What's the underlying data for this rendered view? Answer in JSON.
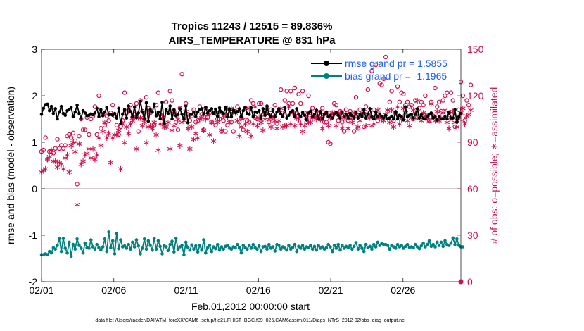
{
  "chart_data": {
    "type": "line",
    "title": "Tropics 11243 / 12515 = 89.836%",
    "subtitle": "AIRS_TEMPERATURE @ 831 hPa",
    "xlabel": "Feb.01,2012 00:00:00 start",
    "ylabel_left": "rmse and bias (model - observation)",
    "ylabel_right": "# of obs: o=possible; ∗=assimilated",
    "footer": "data file: /Users/raeder/DAI/ATM_forcXX/CAM6_setup/f.e21.FHIST_BGC.f09_025.CAM6assim.011/Diags_NTrS_2012-02/obs_diag_output.nc",
    "x_ticks": [
      "02/01",
      "02/06",
      "02/11",
      "02/16",
      "02/21",
      "02/26"
    ],
    "x_tick_days": [
      0,
      5,
      10,
      15,
      20,
      25
    ],
    "xlim": [
      0,
      29
    ],
    "ylim_left": [
      -2,
      3
    ],
    "y_ticks_left": [
      "-2",
      "-1",
      "0",
      "1",
      "2",
      "3"
    ],
    "ylim_right": [
      0,
      150
    ],
    "y_ticks_right": [
      "0",
      "30",
      "60",
      "90",
      "120",
      "150"
    ],
    "colors": {
      "rmse": "#000000",
      "bias": "#00807f",
      "obs": "#d0104a",
      "legend_text": "#1a5cff",
      "zero_line": "#c8b8c0"
    },
    "series": [
      {
        "name": "rmse grand pr = 1.5855",
        "axis": "left",
        "values": [
          1.6,
          1.73,
          1.81,
          1.82,
          1.68,
          1.77,
          1.62,
          1.72,
          1.5,
          1.65,
          1.77,
          1.62,
          1.58,
          1.68,
          1.71,
          1.75,
          1.55,
          1.65,
          1.8,
          1.62,
          1.52,
          1.68,
          1.63,
          1.57,
          1.58,
          1.61,
          1.59,
          1.63,
          1.73,
          1.55,
          1.7,
          1.57,
          1.65,
          1.75,
          1.59,
          1.6,
          1.58,
          1.62,
          1.52,
          1.73,
          1.4,
          1.6,
          1.7,
          1.52,
          1.78,
          1.66,
          1.55,
          1.76,
          1.53,
          1.63,
          1.88,
          1.65,
          1.5,
          1.85,
          1.45,
          1.7,
          1.65,
          1.82,
          1.57,
          1.65,
          1.5,
          1.86,
          1.4,
          1.7,
          1.62,
          1.78,
          1.5,
          1.7,
          1.57,
          1.6,
          1.72,
          1.6,
          1.5,
          1.78,
          1.42,
          1.6,
          1.6,
          1.65,
          1.55,
          1.65,
          1.7,
          1.72,
          1.6,
          1.75,
          1.63,
          1.68,
          1.72,
          1.62,
          1.71,
          1.56,
          1.74,
          1.66,
          1.62,
          1.75,
          1.55,
          1.7,
          1.55,
          1.69,
          1.64,
          1.66,
          1.72,
          1.55,
          1.68,
          1.75,
          1.62,
          1.6,
          1.74,
          1.55,
          1.65,
          1.64,
          1.68,
          1.5,
          1.72,
          1.58,
          1.78,
          1.6,
          1.55,
          1.7,
          1.55,
          1.65,
          1.72,
          1.61,
          1.55,
          1.75,
          1.52,
          1.58,
          1.65,
          1.68,
          1.55,
          1.72,
          1.6,
          1.55,
          1.64,
          1.58,
          1.48,
          1.63,
          1.67,
          1.55,
          1.6,
          1.69,
          1.5,
          1.66,
          1.5,
          1.6,
          1.65,
          1.55,
          1.58,
          1.52,
          1.6,
          1.64,
          1.58,
          1.52,
          1.65,
          1.55,
          1.6,
          1.52,
          1.62,
          1.57,
          1.52,
          1.65,
          1.52,
          1.6,
          1.55,
          1.7,
          1.52,
          1.6,
          1.72,
          1.55,
          1.5,
          1.65,
          1.55,
          1.61,
          1.55,
          1.52,
          1.58,
          1.5,
          1.52,
          1.56,
          1.5,
          1.66,
          1.5,
          1.58,
          1.55,
          1.48,
          1.76,
          1.55,
          1.58,
          1.6,
          1.52,
          1.6,
          1.72,
          1.52,
          1.59,
          1.52,
          1.5,
          1.55,
          1.6,
          1.63,
          1.52,
          1.55,
          1.48,
          1.55,
          1.5,
          1.5,
          1.55,
          1.5,
          1.65,
          1.52,
          1.52,
          1.7,
          1.43,
          1.55,
          1.62
        ]
      },
      {
        "name": "bias grand pr = -1.1965",
        "axis": "left",
        "values": [
          -1.42,
          -1.42,
          -1.4,
          -1.42,
          -1.35,
          -1.38,
          -1.27,
          -1.3,
          -1.22,
          -1.07,
          -1.35,
          -1.07,
          -1.28,
          -1.38,
          -1.15,
          -1.45,
          -1.2,
          -1.3,
          -1.08,
          -1.22,
          -1.28,
          -1.38,
          -1.17,
          -1.27,
          -1.28,
          -1.1,
          -1.25,
          -1.3,
          -1.2,
          -1.27,
          -1.32,
          -1.25,
          -1.08,
          -1.35,
          -0.93,
          -1.27,
          -1.12,
          -1.4,
          -0.96,
          -1.29,
          -1.1,
          -1.25,
          -1.23,
          -1.28,
          -1.2,
          -1.3,
          -1.15,
          -1.25,
          -1.1,
          -1.23,
          -1.4,
          -1.28,
          -1.08,
          -1.3,
          -1.12,
          -1.22,
          -1.32,
          -1.07,
          -1.3,
          -1.12,
          -1.24,
          -1.4,
          -1.22,
          -1.25,
          -1.33,
          -1.2,
          -1.13,
          -1.36,
          -1.07,
          -1.3,
          -1.25,
          -1.22,
          -1.42,
          -1.15,
          -1.26,
          -1.32,
          -1.21,
          -1.3,
          -1.23,
          -1.36,
          -1.22,
          -1.32,
          -1.1,
          -1.38,
          -1.27,
          -1.22,
          -1.35,
          -1.25,
          -1.29,
          -1.2,
          -1.32,
          -1.25,
          -1.3,
          -1.24,
          -1.22,
          -1.28,
          -1.3,
          -1.25,
          -1.27,
          -1.2,
          -1.27,
          -1.38,
          -1.22,
          -1.27,
          -1.3,
          -1.22,
          -1.28,
          -1.2,
          -1.27,
          -1.3,
          -1.23,
          -1.35,
          -1.25,
          -1.24,
          -1.3,
          -1.2,
          -1.28,
          -1.25,
          -1.34,
          -1.2,
          -1.22,
          -1.3,
          -1.25,
          -1.28,
          -1.32,
          -1.22,
          -1.3,
          -1.26,
          -1.2,
          -1.35,
          -1.24,
          -1.28,
          -1.22,
          -1.3,
          -1.25,
          -1.27,
          -1.22,
          -1.3,
          -1.24,
          -1.32,
          -1.22,
          -1.28,
          -1.25,
          -1.3,
          -1.27,
          -1.2,
          -1.25,
          -1.35,
          -1.22,
          -1.28,
          -1.2,
          -1.32,
          -1.22,
          -1.28,
          -1.24,
          -1.27,
          -1.22,
          -1.3,
          -1.24,
          -1.16,
          -1.3,
          -1.22,
          -1.28,
          -1.35,
          -1.2,
          -1.27,
          -1.24,
          -1.3,
          -1.2,
          -1.25,
          -1.15,
          -1.22,
          -1.18,
          -1.2,
          -1.2,
          -1.22,
          -1.3,
          -1.22,
          -1.25,
          -1.28,
          -1.2,
          -1.25,
          -1.22,
          -1.28,
          -1.24,
          -1.2,
          -1.26,
          -1.25,
          -1.27,
          -1.2,
          -1.25,
          -1.29,
          -1.23,
          -1.17,
          -1.25,
          -1.2,
          -1.12,
          -1.24,
          -1.2,
          -1.25,
          -1.15,
          -1.22,
          -1.15,
          -1.24,
          -1.12,
          -1.2,
          -1.22,
          -1.17,
          -1.06,
          -1.2,
          -1.08,
          -1.22,
          -1.25,
          -1.25
        ]
      },
      {
        "name": "obs possible",
        "axis": "right",
        "marker": "o",
        "values": [
          84,
          85,
          93,
          79,
          84,
          84,
          83,
          86,
          92,
          86,
          88,
          86,
          88,
          94,
          95,
          93,
          96,
          91,
          63,
          94,
          105,
          98,
          98,
          106,
          95,
          105,
          107,
          113,
          95,
          120,
          99,
          108,
          101,
          107,
          104,
          109,
          114,
          107,
          101,
          95,
          100,
          104,
          122,
          109,
          111,
          114,
          106,
          108,
          115,
          97,
          117,
          110,
          105,
          119,
          112,
          109,
          100,
          101,
          114,
          122,
          108,
          107,
          102,
          116,
          111,
          123,
          117,
          110,
          103,
          98,
          112,
          134,
          107,
          115,
          108,
          104,
          107,
          111,
          103,
          104,
          113,
          108,
          98,
          112,
          106,
          109,
          103,
          109,
          101,
          105,
          105,
          97,
          104,
          97,
          101,
          105,
          103,
          97,
          110,
          113,
          103,
          106,
          98,
          112,
          104,
          103,
          117,
          115,
          106,
          105,
          115,
          115,
          108,
          109,
          112,
          103,
          111,
          108,
          114,
          102,
          111,
          124,
          109,
          117,
          123,
          115,
          123,
          115,
          125,
          109,
          121,
          115,
          123,
          109,
          103,
          120,
          109,
          112,
          107,
          110,
          109,
          105,
          112,
          103,
          103,
          90,
          89,
          107,
          115,
          114,
          104,
          110,
          103,
          97,
          111,
          104,
          110,
          106,
          97,
          119,
          99,
          111,
          108,
          100,
          113,
          124,
          109,
          136,
          111,
          140,
          104,
          128,
          127,
          131,
          145,
          110,
          116,
          123,
          104,
          109,
          126,
          116,
          122,
          121,
          114,
          116,
          113,
          114,
          105,
          117,
          106,
          112,
          116,
          114,
          120,
          107,
          104,
          116,
          107,
          125,
          113,
          116,
          110,
          117,
          120,
          122,
          109,
          122,
          117,
          100,
          104,
          111,
          129,
          120,
          104,
          117,
          114,
          127
        ]
      },
      {
        "name": "obs assimilated",
        "axis": "right",
        "marker": "*",
        "values": [
          71,
          72,
          73,
          79,
          81,
          85,
          78,
          78,
          74,
          77,
          76,
          73,
          80,
          82,
          71,
          88,
          90,
          84,
          50,
          89,
          76,
          78,
          82,
          83,
          86,
          80,
          86,
          79,
          82,
          93,
          88,
          97,
          103,
          93,
          96,
          77,
          93,
          95,
          95,
          98,
          73,
          102,
          90,
          100,
          96,
          102,
          104,
          106,
          86,
          106,
          106,
          101,
          103,
          90,
          100,
          101,
          99,
          103,
          95,
          85,
          102,
          106,
          100,
          100,
          103,
          86,
          98,
          101,
          108,
          105,
          88,
          103,
          104,
          110,
          99,
          86,
          100,
          92,
          96,
          93,
          105,
          106,
          98,
          105,
          108,
          95,
          103,
          91,
          109,
          103,
          109,
          98,
          107,
          108,
          112,
          103,
          112,
          110,
          109,
          104,
          94,
          100,
          105,
          102,
          97,
          112,
          94,
          102,
          113,
          101,
          106,
          103,
          98,
          105,
          109,
          105,
          100,
          106,
          104,
          99,
          104,
          112,
          100,
          101,
          101,
          113,
          102,
          109,
          101,
          106,
          105,
          102,
          97,
          101,
          106,
          103,
          103,
          106,
          107,
          105,
          106,
          105,
          99,
          108,
          109,
          101,
          106,
          109,
          109,
          101,
          108,
          109,
          99,
          106,
          108,
          99,
          105,
          103,
          109,
          108,
          100,
          104,
          109,
          110,
          101,
          108,
          106,
          101,
          102,
          106,
          111,
          107,
          105,
          104,
          108,
          111,
          103,
          111,
          100,
          109,
          113,
          102,
          105,
          112,
          109,
          104,
          101,
          106,
          111,
          109,
          117,
          106,
          104,
          109,
          107,
          106,
          104,
          115,
          106,
          104,
          110,
          104,
          106,
          109,
          111,
          103,
          99,
          106,
          110,
          103,
          100,
          105,
          109,
          112,
          102,
          107,
          108,
          111
        ]
      }
    ]
  }
}
